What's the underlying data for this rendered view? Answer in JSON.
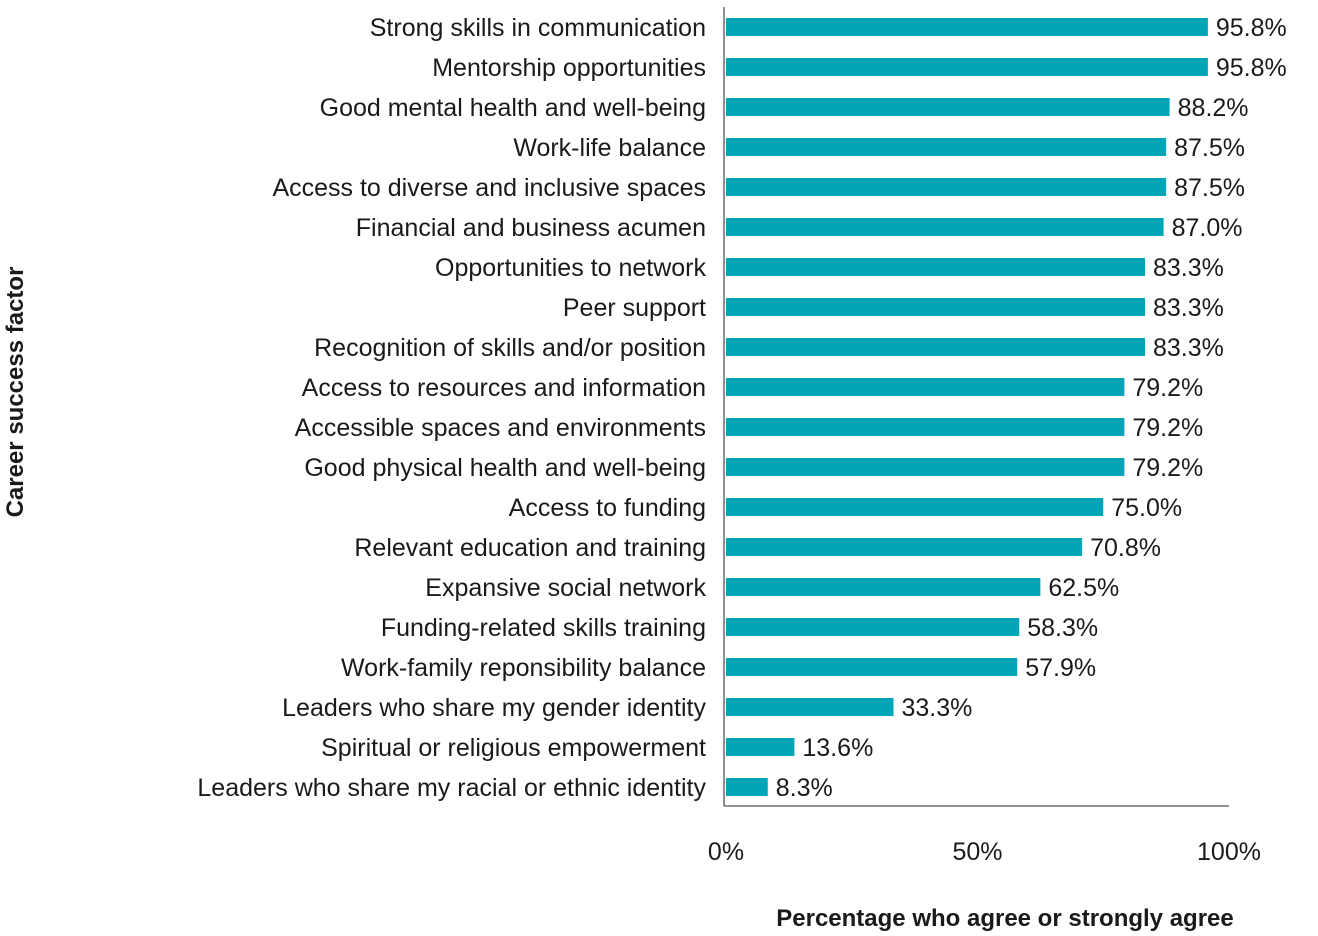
{
  "chart_data": {
    "type": "bar",
    "orientation": "horizontal",
    "ylabel": "Career success factor",
    "xlabel": "Percentage who agree or strongly agree",
    "xlim": [
      0,
      100
    ],
    "x_ticks": [
      "0%",
      "50%",
      "100%"
    ],
    "bar_color": "#00A6B8",
    "grid": false,
    "categories": [
      "Strong skills in communication",
      "Mentorship opportunities",
      "Good mental health and well-being",
      "Work-life balance",
      "Access to diverse and inclusive spaces",
      "Financial and business acumen",
      "Opportunities to network",
      "Peer support",
      "Recognition of skills and/or position",
      "Access to resources and information",
      "Accessible spaces and environments",
      "Good physical health and well-being",
      "Access to funding",
      "Relevant education and training",
      "Expansive social network",
      "Funding-related skills training",
      "Work-family reponsibility balance",
      "Leaders who share my gender identity",
      "Spiritual or religious empowerment",
      "Leaders who share my racial or ethnic identity"
    ],
    "values": [
      95.8,
      95.8,
      88.2,
      87.5,
      87.5,
      87.0,
      83.3,
      83.3,
      83.3,
      79.2,
      79.2,
      79.2,
      75.0,
      70.8,
      62.5,
      58.3,
      57.9,
      33.3,
      13.6,
      8.3
    ],
    "value_labels": [
      "95.8%",
      "95.8%",
      "88.2%",
      "87.5%",
      "87.5%",
      "87.0%",
      "83.3%",
      "83.3%",
      "83.3%",
      "79.2%",
      "79.2%",
      "79.2%",
      "75.0%",
      "70.8%",
      "62.5%",
      "58.3%",
      "57.9%",
      "33.3%",
      "13.6%",
      "8.3%"
    ]
  }
}
